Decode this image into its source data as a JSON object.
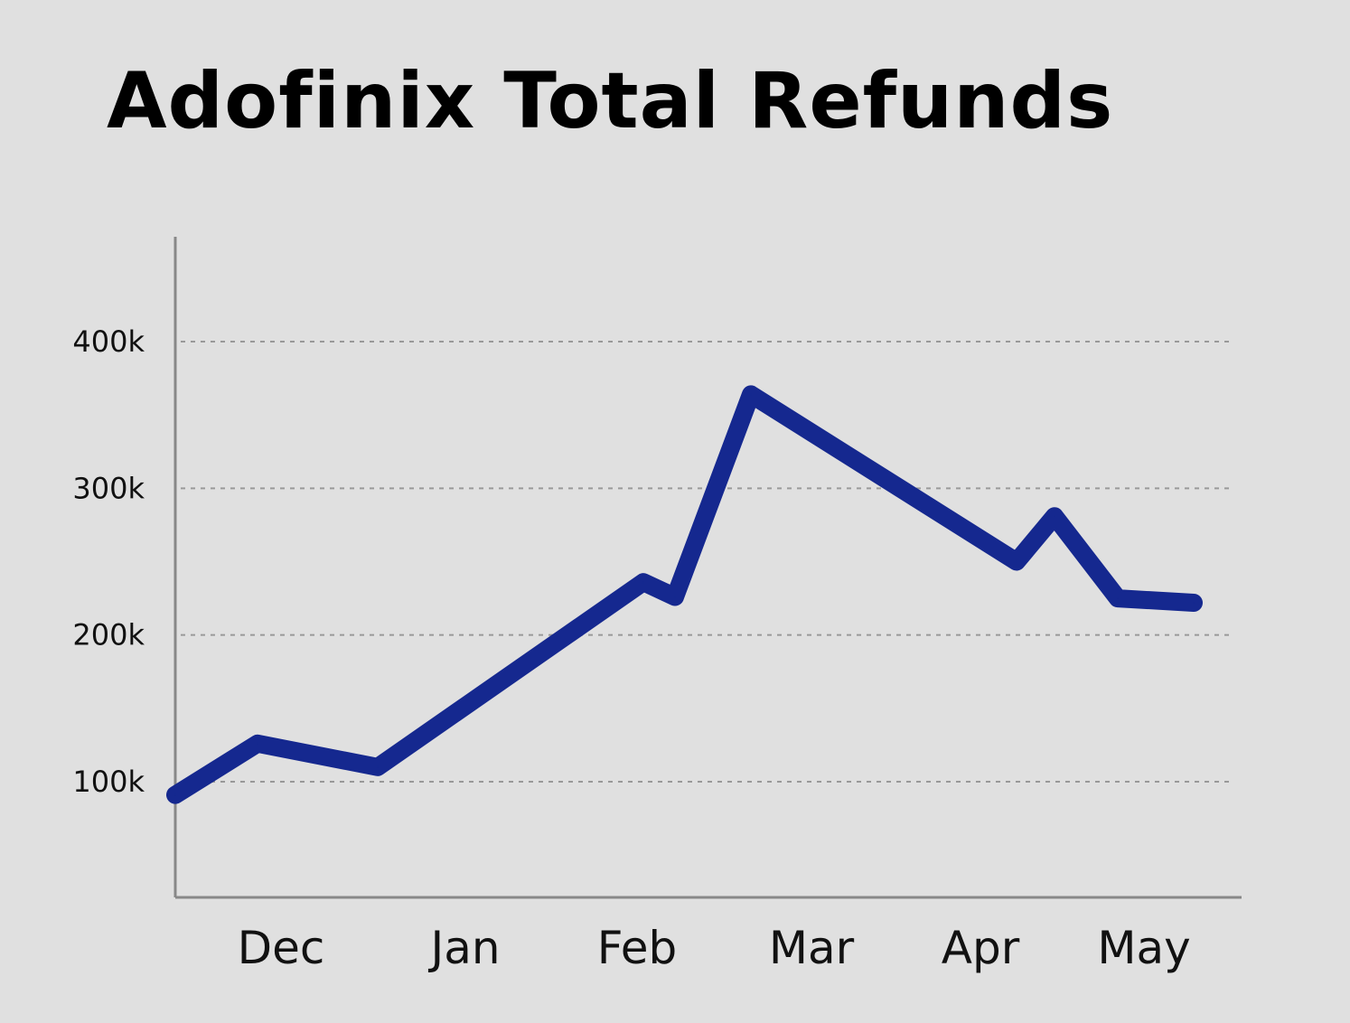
{
  "chart_data": {
    "type": "line",
    "title": "Adofinix Total Refunds",
    "xlabel": "",
    "ylabel": "",
    "x_tick_labels": [
      "Dec",
      "Jan",
      "Feb",
      "Mar",
      "Apr",
      "May"
    ],
    "y_tick_labels": [
      "100k",
      "200k",
      "300k",
      "400k"
    ],
    "y_ticks": [
      100000,
      200000,
      300000,
      400000
    ],
    "ylim": [
      20000,
      470000
    ],
    "grid": "horizontal dashed",
    "legend": "none",
    "series": [
      {
        "color": "#15288f",
        "points": [
          {
            "x": "Nov 19",
            "y": 91000
          },
          {
            "x": "Dec 02",
            "y": 126000
          },
          {
            "x": "Dec 21",
            "y": 110000
          },
          {
            "x": "Feb 01",
            "y": 236000
          },
          {
            "x": "Feb 06",
            "y": 226000
          },
          {
            "x": "Feb 18",
            "y": 364000
          },
          {
            "x": "Apr 01",
            "y": 250000
          },
          {
            "x": "Apr 07",
            "y": 281000
          },
          {
            "x": "Apr 17",
            "y": 225000
          },
          {
            "x": "Apr 29",
            "y": 222000
          }
        ]
      }
    ]
  }
}
